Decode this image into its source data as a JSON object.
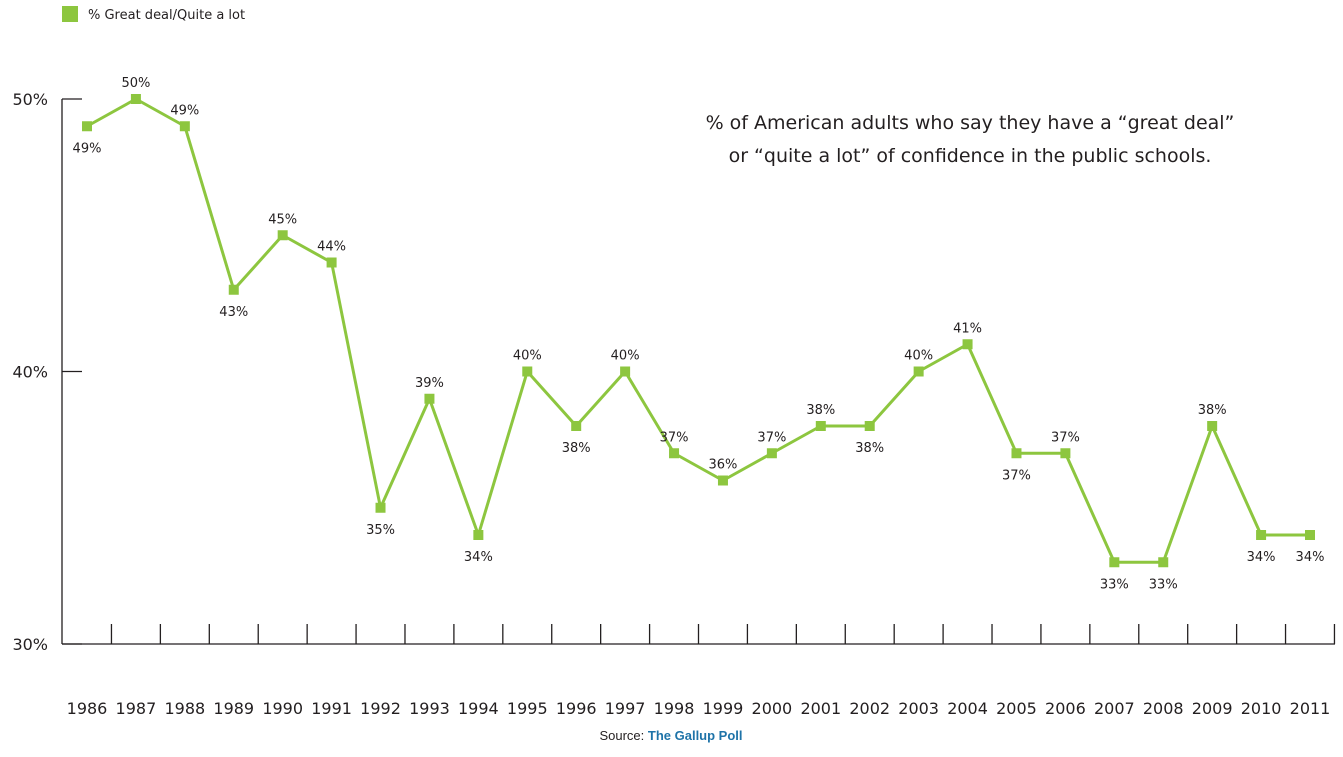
{
  "legend": {
    "label": "% Great deal/Quite a lot"
  },
  "annotation": {
    "line1": "% of American adults who say they have a “great deal”",
    "line2": "or “quite a lot” of confidence in the public schools."
  },
  "source": {
    "prefix": "Source: ",
    "name": "The Gallup Poll"
  },
  "colors": {
    "series": "#8dc63f",
    "axis": "#231f20",
    "source_name": "#1e73a8"
  },
  "chart_data": {
    "type": "line",
    "title": "",
    "xlabel": "",
    "ylabel": "",
    "ylim": [
      30,
      50
    ],
    "yticks": [
      30,
      40,
      50
    ],
    "ytick_labels": [
      "30%",
      "40%",
      "50%"
    ],
    "grid": false,
    "legend_position": "top-left",
    "x": [
      "1986",
      "1987",
      "1988",
      "1989",
      "1990",
      "1991",
      "1992",
      "1993",
      "1994",
      "1995",
      "1996",
      "1997",
      "1998",
      "1999",
      "2000",
      "2001",
      "2002",
      "2003",
      "2004",
      "2005",
      "2006",
      "2007",
      "2008",
      "2009",
      "2010",
      "2011"
    ],
    "series": [
      {
        "name": "% Great deal/Quite a lot",
        "values": [
          49,
          50,
          49,
          43,
          45,
          44,
          35,
          39,
          34,
          40,
          38,
          40,
          37,
          36,
          37,
          38,
          38,
          40,
          41,
          37,
          37,
          33,
          33,
          38,
          34,
          34
        ],
        "data_labels": [
          "49%",
          "50%",
          "49%",
          "43%",
          "45%",
          "44%",
          "35%",
          "39%",
          "34%",
          "40%",
          "38%",
          "40%",
          "37%",
          "36%",
          "37%",
          "38%",
          "38%",
          "40%",
          "41%",
          "37%",
          "37%",
          "33%",
          "33%",
          "38%",
          "34%",
          "34%"
        ],
        "label_positions": [
          "below",
          "above",
          "above",
          "below",
          "above",
          "above",
          "below",
          "above",
          "below",
          "above",
          "below",
          "above",
          "above",
          "above",
          "above",
          "above",
          "below",
          "above",
          "above",
          "below",
          "above",
          "below",
          "below",
          "above",
          "below",
          "below"
        ]
      }
    ]
  }
}
